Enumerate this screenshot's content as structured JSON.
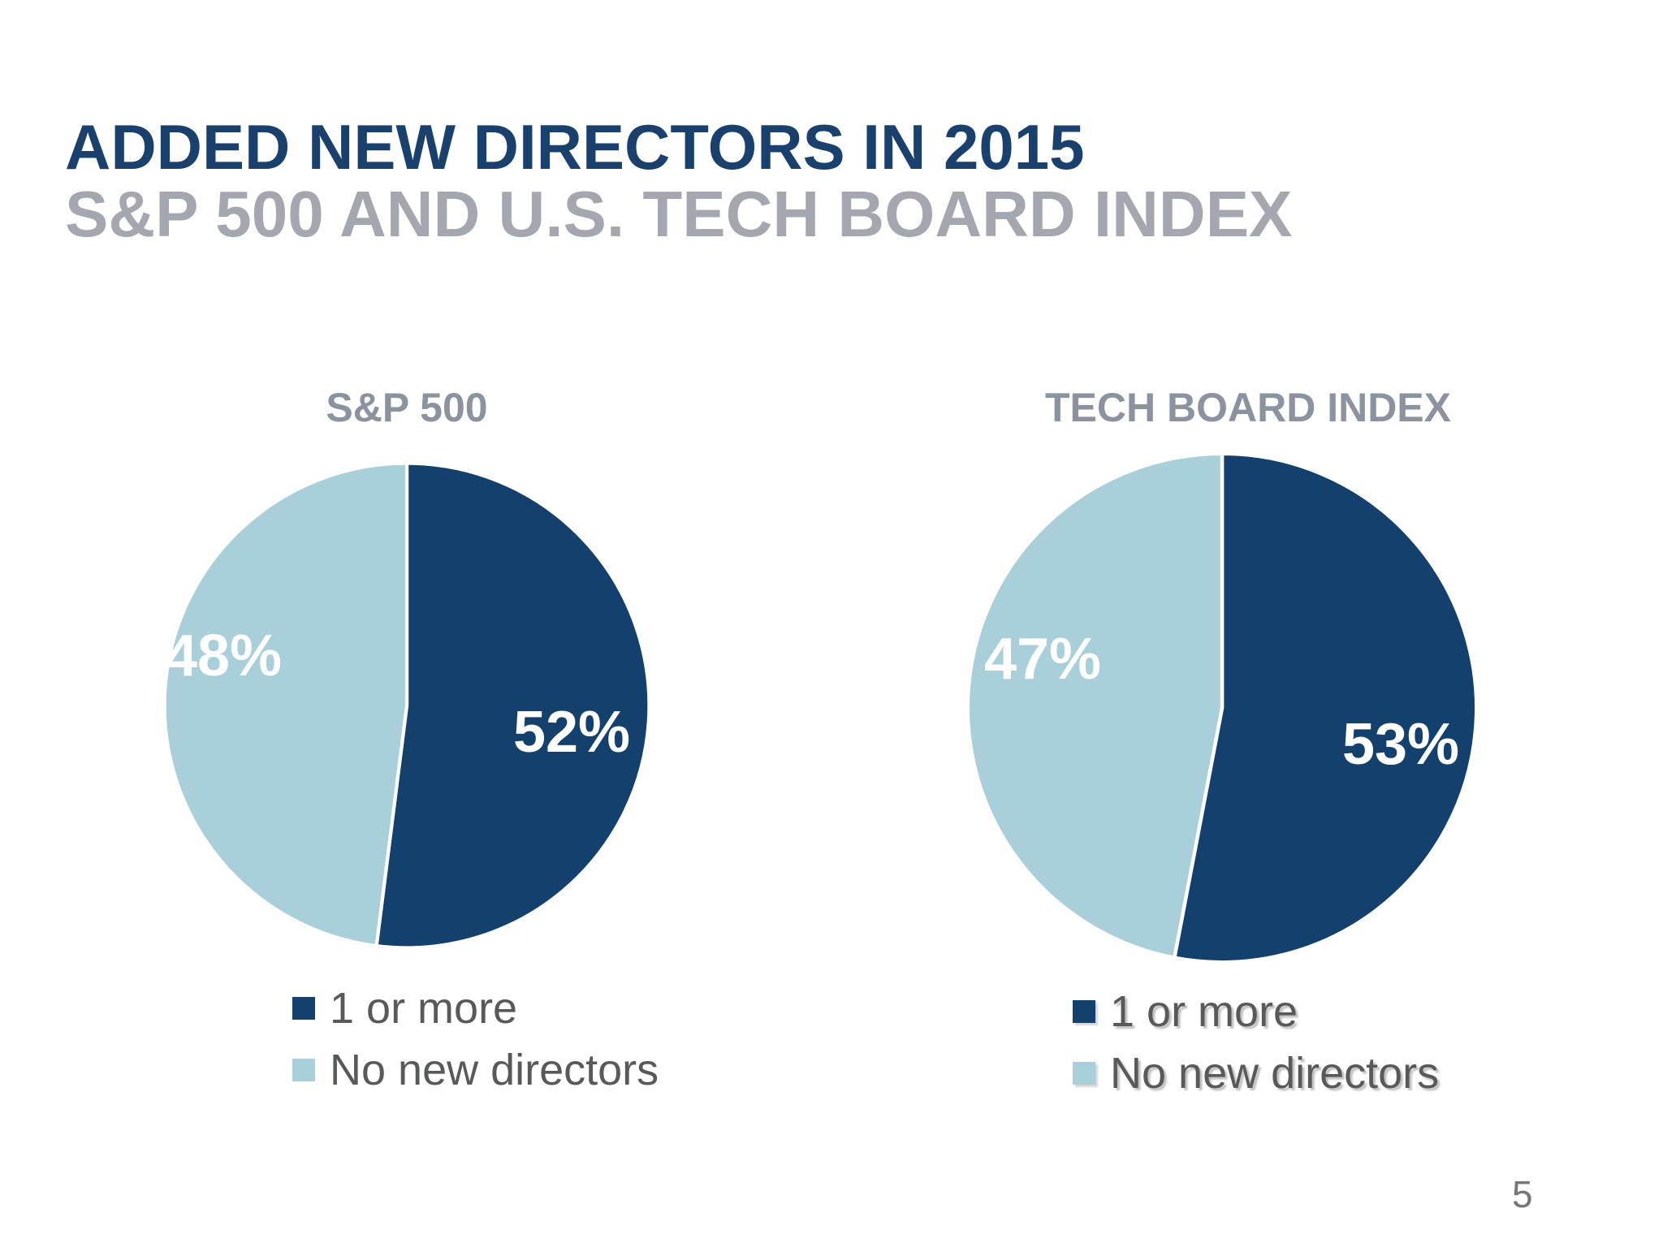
{
  "page": {
    "title": "ADDED NEW DIRECTORS IN 2015",
    "subtitle": "S&P 500 AND U.S. TECH BOARD INDEX",
    "page_number": "5",
    "colors": {
      "title_navy": "#1a406d",
      "subtitle_gray": "#a4a7af",
      "chart_title_gray": "#8c93a0",
      "legend_text_gray": "#58595b",
      "pie_dark_navy": "#14406e",
      "pie_light_blue": "#a9cfdb",
      "page_number_gray": "#76777a",
      "divider_white": "#ffffff"
    }
  },
  "chart_data": [
    {
      "type": "pie",
      "title": "S&P 500",
      "labels": [
        "1 or more",
        "No new directors"
      ],
      "values": [
        52,
        48
      ],
      "value_labels": [
        "52%",
        "48%"
      ],
      "colors": [
        "#14406e",
        "#a9cfdb"
      ],
      "start_angle": "12-oclock",
      "direction": "clockwise",
      "legend_position": "bottom-left"
    },
    {
      "type": "pie",
      "title": "TECH BOARD INDEX",
      "labels": [
        "1 or more",
        "No new directors"
      ],
      "values": [
        53,
        47
      ],
      "value_labels": [
        "53%",
        "47%"
      ],
      "colors": [
        "#14406e",
        "#a9cfdb"
      ],
      "start_angle": "12-oclock",
      "direction": "clockwise",
      "legend_position": "bottom-left"
    }
  ]
}
